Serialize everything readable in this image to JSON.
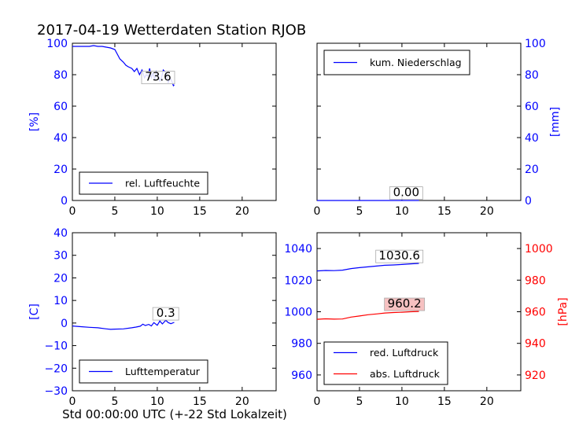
{
  "title": "2017-04-19 Wetterdaten Station RJOB",
  "xlabel": "Std 00:00:00 UTC (+-22 Std Lokalzeit)",
  "colors": {
    "blue": "#0000ff",
    "red": "#ff0000",
    "black": "#000000",
    "pink_box": "#f4b6b6"
  },
  "chart_data": [
    {
      "type": "line",
      "panel": "top-left",
      "ylabel": "[%]",
      "xlim": [
        0,
        24
      ],
      "ylim": [
        0,
        100
      ],
      "xticks": [
        "0",
        "5",
        "10",
        "15",
        "20"
      ],
      "yticks": [
        "0",
        "20",
        "40",
        "60",
        "80",
        "100"
      ],
      "legend": {
        "location": "lower-left"
      },
      "series": [
        {
          "name": "rel. Luftfeuchte",
          "color": "#0000ff",
          "x": [
            0,
            0.5,
            1,
            2,
            2.5,
            3,
            3.5,
            4,
            4.5,
            5,
            5.3,
            5.6,
            6,
            6.3,
            6.6,
            7,
            7.3,
            7.6,
            7.9,
            8.2,
            8.5,
            8.7,
            8.9,
            9.1,
            9.3,
            9.5,
            9.7,
            9.9,
            10.1,
            10.3,
            10.5,
            10.7,
            10.9,
            11.1,
            11.3,
            11.5,
            11.7,
            11.9,
            12
          ],
          "y": [
            98,
            98,
            98,
            98,
            98.5,
            98,
            98,
            97.5,
            97,
            96,
            93,
            90,
            88,
            86,
            85,
            84,
            82,
            84,
            80,
            83,
            78,
            80,
            79,
            84,
            78,
            81,
            77,
            82,
            80,
            76,
            78,
            83,
            82,
            80,
            75,
            78,
            76,
            73,
            73.6
          ]
        }
      ],
      "annotations": [
        {
          "text": "73.6",
          "x": 10.1,
          "y": 76.2
        }
      ]
    },
    {
      "type": "line",
      "panel": "top-right",
      "ylabel": "[mm]",
      "xlim": [
        0,
        24
      ],
      "ylim": [
        0,
        100
      ],
      "xticks": [
        "0",
        "5",
        "10",
        "15",
        "20"
      ],
      "yticks": [
        "0",
        "20",
        "40",
        "60",
        "80",
        "100"
      ],
      "legend": {
        "location": "upper-left"
      },
      "series": [
        {
          "name": "kum. Niederschlag",
          "color": "#0000ff",
          "x": [
            0,
            12
          ],
          "y": [
            0,
            0
          ]
        }
      ],
      "annotations": [
        {
          "text": "0.00",
          "x": 10.5,
          "y": 2.7
        }
      ]
    },
    {
      "type": "line",
      "panel": "bottom-left",
      "ylabel": "[C]",
      "xlim": [
        0,
        24
      ],
      "ylim": [
        -30,
        40
      ],
      "xticks": [
        "0",
        "5",
        "10",
        "15",
        "20"
      ],
      "yticks": [
        "−30",
        "−20",
        "−10",
        "0",
        "10",
        "20",
        "30",
        "40"
      ],
      "legend": {
        "location": "lower-left"
      },
      "series": [
        {
          "name": "Lufttemperatur",
          "color": "#0000ff",
          "x": [
            0,
            1,
            2,
            3,
            4,
            4.5,
            5,
            6,
            7,
            7.5,
            8,
            8.3,
            8.6,
            9,
            9.3,
            9.6,
            10,
            10.3,
            10.6,
            11,
            11.3,
            11.6,
            12
          ],
          "y": [
            -1.3,
            -1.6,
            -1.9,
            -2.1,
            -2.6,
            -2.8,
            -2.7,
            -2.6,
            -2.1,
            -1.8,
            -1.4,
            -0.5,
            -1.1,
            -0.6,
            -1.3,
            0.2,
            -1.0,
            0.9,
            -0.4,
            1.2,
            0.2,
            -0.3,
            0.3
          ]
        }
      ],
      "annotations": [
        {
          "text": "0.3",
          "x": 11.0,
          "y": 2.7
        }
      ]
    },
    {
      "type": "line",
      "panel": "bottom-right",
      "ylabel": "[hPa]",
      "xlim": [
        0,
        24
      ],
      "ylim_left": [
        950,
        1050
      ],
      "ylim_right": [
        910,
        1010
      ],
      "xticks": [
        "0",
        "5",
        "10",
        "15",
        "20"
      ],
      "yticks_left": [
        "960",
        "980",
        "1000",
        "1020",
        "1040"
      ],
      "yticks_right": [
        "920",
        "940",
        "960",
        "980",
        "1000"
      ],
      "legend": {
        "location": "lower-left"
      },
      "series": [
        {
          "name": "red. Luftdruck",
          "color": "#0000ff",
          "axis": "left",
          "x": [
            0,
            1,
            2,
            3,
            4,
            5,
            6,
            7,
            8,
            9,
            10,
            11,
            12
          ],
          "y": [
            1025.8,
            1026.1,
            1026.0,
            1026.3,
            1027.3,
            1027.9,
            1028.4,
            1028.9,
            1029.4,
            1029.6,
            1029.9,
            1030.3,
            1030.6
          ]
        },
        {
          "name": "abs. Luftdruck",
          "color": "#ff0000",
          "axis": "right",
          "x": [
            0,
            1,
            2,
            3,
            4,
            5,
            6,
            7,
            8,
            9,
            10,
            11,
            12
          ],
          "y": [
            955.2,
            955.5,
            955.3,
            955.4,
            956.6,
            957.3,
            958.1,
            958.6,
            959.2,
            959.5,
            959.7,
            960.0,
            960.2
          ]
        }
      ],
      "annotations": [
        {
          "text": "1030.6",
          "x": 9.7,
          "y_left": 1033,
          "axis": "left",
          "box": "white"
        },
        {
          "text": "960.2",
          "x": 10.3,
          "y_right": 962.7,
          "axis": "right",
          "box": "pink"
        }
      ]
    }
  ]
}
